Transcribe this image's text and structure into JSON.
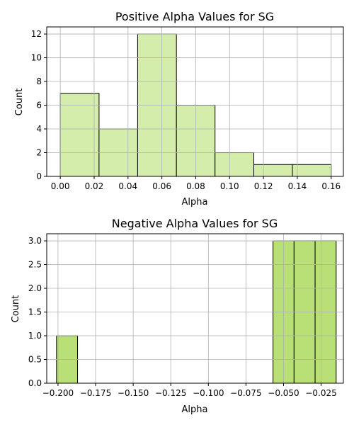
{
  "chart_data": [
    {
      "type": "bar",
      "title": "Positive Alpha Values for SG",
      "xlabel": "Alpha",
      "ylabel": "Count",
      "bar_color": "#d4edaa",
      "edge_color": "#000000",
      "grid": true,
      "xlim": [
        -0.008,
        0.1672
      ],
      "ylim": [
        0,
        12.6
      ],
      "xticks": [
        0.0,
        0.02,
        0.04,
        0.06,
        0.08,
        0.1,
        0.12,
        0.14,
        0.16
      ],
      "xtick_labels": [
        "0.00",
        "0.02",
        "0.04",
        "0.06",
        "0.08",
        "0.10",
        "0.12",
        "0.14",
        "0.16"
      ],
      "yticks": [
        0,
        2,
        4,
        6,
        8,
        10,
        12
      ],
      "ytick_labels": [
        "0",
        "2",
        "4",
        "6",
        "8",
        "10",
        "12"
      ],
      "bins": [
        {
          "x0": 0.0,
          "x1": 0.0229,
          "value": 7
        },
        {
          "x0": 0.0229,
          "x1": 0.0457,
          "value": 4
        },
        {
          "x0": 0.0457,
          "x1": 0.0686,
          "value": 12
        },
        {
          "x0": 0.0686,
          "x1": 0.0914,
          "value": 6
        },
        {
          "x0": 0.0914,
          "x1": 0.1143,
          "value": 2
        },
        {
          "x0": 0.1143,
          "x1": 0.1371,
          "value": 1
        },
        {
          "x0": 0.1371,
          "x1": 0.16,
          "value": 1
        }
      ]
    },
    {
      "type": "bar",
      "title": "Negative Alpha Values for SG",
      "xlabel": "Alpha",
      "ylabel": "Count",
      "bar_color": "#b9e076",
      "edge_color": "#000000",
      "grid": true,
      "xlim": [
        -0.2075,
        -0.0102
      ],
      "ylim": [
        0,
        3.15
      ],
      "xticks": [
        -0.2,
        -0.175,
        -0.15,
        -0.125,
        -0.1,
        -0.075,
        -0.05,
        -0.025
      ],
      "xtick_labels": [
        "−0.200",
        "−0.175",
        "−0.150",
        "−0.125",
        "−0.100",
        "−0.075",
        "−0.050",
        "−0.025"
      ],
      "yticks": [
        0,
        0.5,
        1.0,
        1.5,
        2.0,
        2.5,
        3.0
      ],
      "ytick_labels": [
        "0.0",
        "0.5",
        "1.0",
        "1.5",
        "2.0",
        "2.5",
        "3.0"
      ],
      "bins": [
        {
          "x0": -0.201,
          "x1": -0.187,
          "value": 1
        },
        {
          "x0": -0.057,
          "x1": -0.043,
          "value": 3
        },
        {
          "x0": -0.043,
          "x1": -0.029,
          "value": 3
        },
        {
          "x0": -0.029,
          "x1": -0.015,
          "value": 3
        }
      ]
    }
  ]
}
